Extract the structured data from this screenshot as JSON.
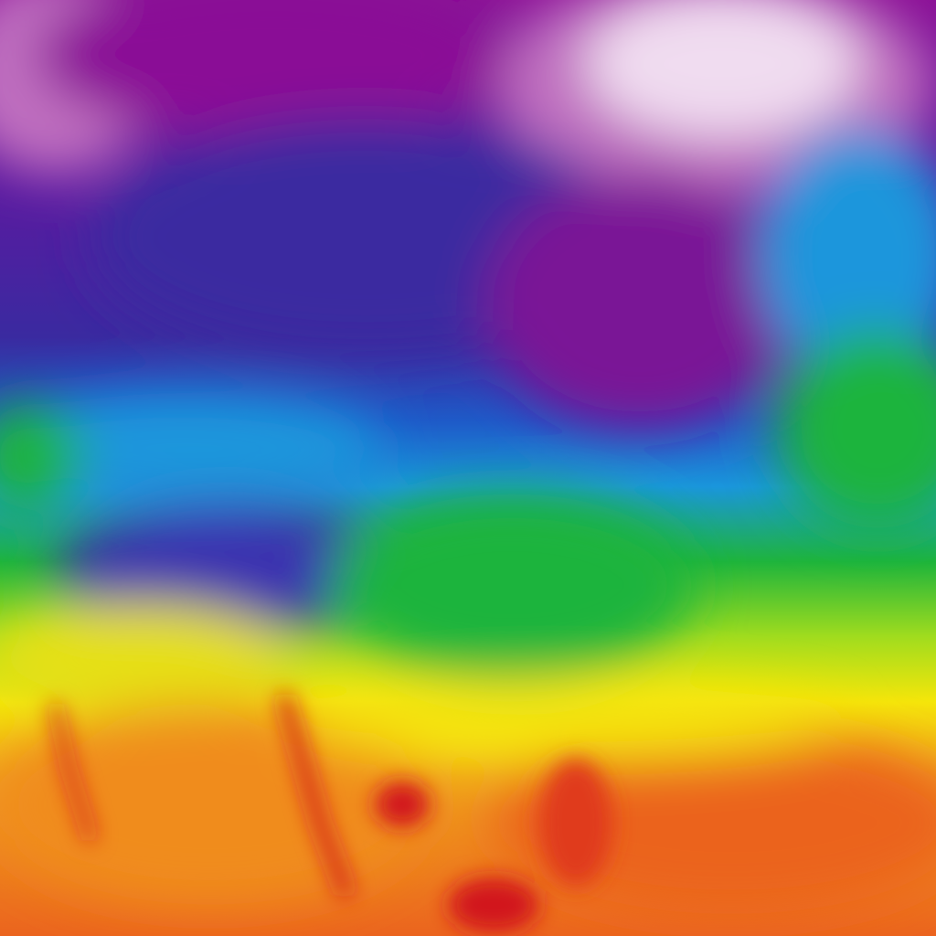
{
  "map": {
    "kind": "temperature-heatmap",
    "palette": {
      "coldest": "#f4e8f4",
      "very_cold": "#c070c0",
      "cold_purple": "#8a0f96",
      "indigo": "#3a2aa0",
      "blue": "#1e5ac8",
      "cyan": "#1a96dc",
      "green": "#1eb43c",
      "yellow_green": "#a0dc1e",
      "yellow": "#f5e60a",
      "orange": "#f08c1e",
      "red_orange": "#eb5a1e",
      "red": "#d2141e"
    }
  }
}
